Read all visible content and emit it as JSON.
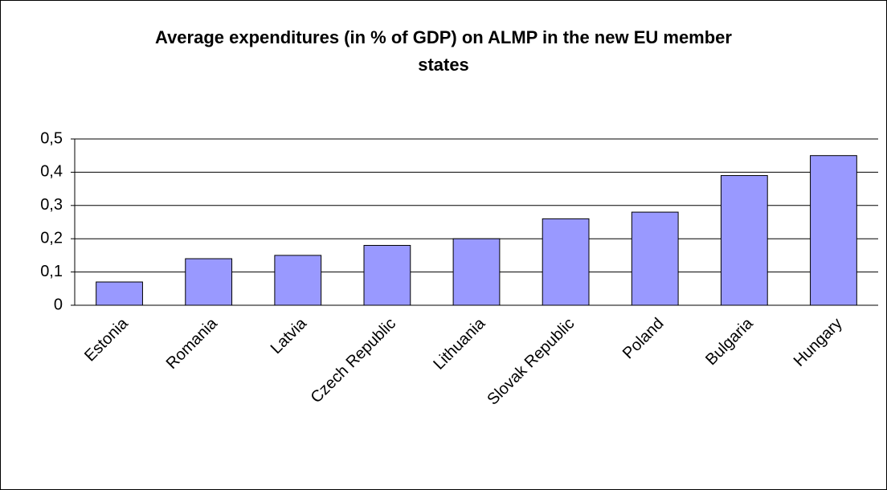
{
  "chart_data": {
    "type": "bar",
    "title": "Average expenditures (in % of GDP) on ALMP in the new EU member states",
    "categories": [
      "Estonia",
      "Romania",
      "Latvia",
      "Czech Republic",
      "Lithuania",
      "Slovak Republic",
      "Poland",
      "Bulgaria",
      "Hungary"
    ],
    "values": [
      0.07,
      0.14,
      0.15,
      0.18,
      0.2,
      0.26,
      0.28,
      0.39,
      0.45
    ],
    "color": "#9999ff",
    "ylim": [
      0,
      0.5
    ],
    "yticks": [
      0,
      {
        "value": 0.1,
        "label": "0,1"
      },
      {
        "value": 0.2,
        "label": "0,2"
      },
      {
        "value": 0.3,
        "label": "0,3"
      },
      {
        "value": 0.4,
        "label": "0,4"
      },
      {
        "value": 0.5,
        "label": "0,5"
      }
    ],
    "grid": true
  }
}
